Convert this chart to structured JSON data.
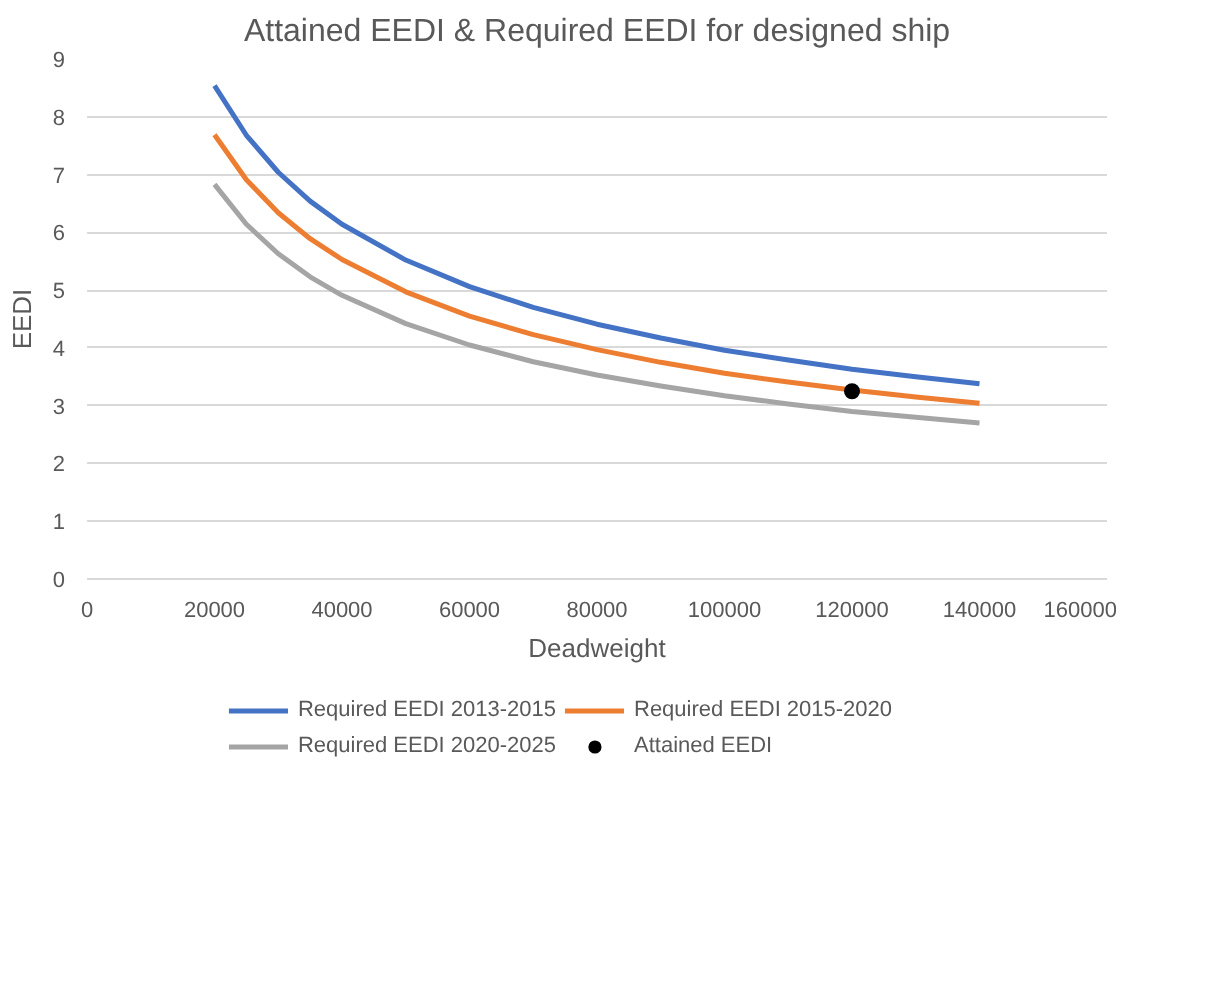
{
  "chart_data": {
    "type": "line",
    "title": "Attained EEDI & Required EEDI for designed ship",
    "xlabel": "Deadweight",
    "ylabel": "EEDI",
    "x": [
      20000,
      25000,
      30000,
      35000,
      40000,
      50000,
      60000,
      70000,
      80000,
      90000,
      100000,
      110000,
      120000,
      130000,
      140000
    ],
    "series": [
      {
        "name": "Required EEDI 2013-2015",
        "color": "#4472c4",
        "values": [
          8.54,
          7.68,
          7.04,
          6.54,
          6.14,
          5.52,
          5.06,
          4.7,
          4.41,
          4.17,
          3.96,
          3.79,
          3.63,
          3.5,
          3.38
        ]
      },
      {
        "name": "Required EEDI 2015-2020",
        "color": "#ed7d31",
        "values": [
          7.69,
          6.91,
          6.34,
          5.89,
          5.53,
          4.97,
          4.55,
          4.23,
          3.97,
          3.75,
          3.56,
          3.41,
          3.27,
          3.15,
          3.04
        ]
      },
      {
        "name": "Required EEDI 2020-2025",
        "color": "#a5a5a5",
        "values": [
          6.83,
          6.14,
          5.63,
          5.23,
          4.91,
          4.42,
          4.05,
          3.76,
          3.53,
          3.34,
          3.17,
          3.03,
          2.9,
          2.8,
          2.7
        ]
      },
      {
        "name": "Attained EEDI",
        "type": "scatter",
        "marker": "circle",
        "color": "#000000",
        "x": [
          120000
        ],
        "values": [
          3.25
        ]
      }
    ],
    "xlim": [
      0,
      160000
    ],
    "xticks": [
      0,
      20000,
      40000,
      60000,
      80000,
      100000,
      120000,
      140000,
      160000
    ],
    "ylim": [
      0,
      9
    ],
    "yticks": [
      0,
      1,
      2,
      3,
      4,
      5,
      6,
      7,
      8,
      9
    ],
    "grid": "y",
    "legend": "bottom",
    "line_style": "solid"
  }
}
